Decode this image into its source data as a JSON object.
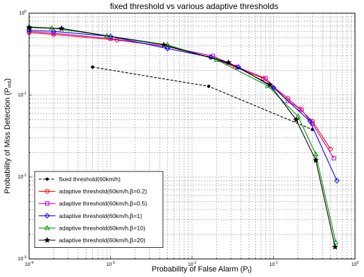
{
  "chart_data": {
    "type": "line",
    "title": "fixed threshold vs various adaptive thresholds",
    "xlabel_main": "Probability of False Alarm (P",
    "xlabel_sub": "f",
    "xlabel_tail": ")",
    "ylabel_main": "Probability of Miss Detection (P",
    "ylabel_sub": "md",
    "ylabel_tail": ")",
    "xscale": "log",
    "yscale": "log",
    "xlim": [
      0.0001,
      1
    ],
    "ylim": [
      0.001,
      1
    ],
    "grid": true,
    "legend_position": "lower-left",
    "x_ticks": [
      {
        "value": 0.0001,
        "base": "10",
        "exp": "-4"
      },
      {
        "value": 0.001,
        "base": "10",
        "exp": "-3"
      },
      {
        "value": 0.01,
        "base": "10",
        "exp": "-2"
      },
      {
        "value": 0.1,
        "base": "10",
        "exp": "-1"
      },
      {
        "value": 1,
        "base": "10",
        "exp": "0"
      }
    ],
    "y_ticks": [
      {
        "value": 0.001,
        "base": "10",
        "exp": "-3"
      },
      {
        "value": 0.01,
        "base": "10",
        "exp": "-2"
      },
      {
        "value": 0.1,
        "base": "10",
        "exp": "-1"
      },
      {
        "value": 1,
        "base": "10",
        "exp": "0"
      }
    ],
    "series": [
      {
        "name": "fixed threshold(60km/h)",
        "color": "#000000",
        "marker": "dot",
        "dash": true,
        "beta": "",
        "x": [
          0.0006,
          0.016,
          0.3
        ],
        "y": [
          0.22,
          0.128,
          0.038
        ]
      },
      {
        "name": "adaptive threshold(60km/h,",
        "beta": "=0.2)",
        "color": "#ff0000",
        "marker": "circle",
        "dash": false,
        "x": [
          0.0001,
          0.0002,
          0.0012,
          0.005,
          0.017,
          0.034,
          0.075,
          0.15,
          0.21,
          0.3,
          0.5
        ],
        "y": [
          0.58,
          0.55,
          0.47,
          0.39,
          0.29,
          0.22,
          0.16,
          0.091,
          0.068,
          0.048,
          0.022
        ]
      },
      {
        "name": "adaptive threshold(60km/h,",
        "beta": "=0.5)",
        "color": "#bf00bf",
        "marker": "square",
        "dash": false,
        "x": [
          0.0001,
          0.0002,
          0.001,
          0.005,
          0.018,
          0.036,
          0.08,
          0.15,
          0.22,
          0.3,
          0.55
        ],
        "y": [
          0.6,
          0.57,
          0.49,
          0.39,
          0.3,
          0.22,
          0.16,
          0.085,
          0.066,
          0.045,
          0.017
        ]
      },
      {
        "name": "adaptive threshold(60km/h,",
        "beta": "=1)",
        "color": "#0000ff",
        "marker": "diamond",
        "dash": false,
        "x": [
          0.0001,
          0.0002,
          0.001,
          0.005,
          0.017,
          0.037,
          0.1,
          0.28,
          0.6
        ],
        "y": [
          0.62,
          0.6,
          0.52,
          0.37,
          0.29,
          0.22,
          0.123,
          0.048,
          0.009
        ]
      },
      {
        "name": "adaptive threshold(60km/h,",
        "beta": "=10)",
        "color": "#009900",
        "marker": "triangle",
        "dash": false,
        "x": [
          0.0001,
          0.00019,
          0.0009,
          0.005,
          0.02,
          0.085,
          0.2,
          0.33,
          0.58
        ],
        "y": [
          0.68,
          0.66,
          0.53,
          0.41,
          0.27,
          0.13,
          0.055,
          0.019,
          0.0016
        ]
      },
      {
        "name": "adaptive threshold(60km/h,",
        "beta": "=20)",
        "color": "#000000",
        "marker": "star",
        "dash": false,
        "x": [
          0.0001,
          0.00025,
          0.0045,
          0.028,
          0.09,
          0.19,
          0.33,
          0.57
        ],
        "y": [
          0.67,
          0.65,
          0.41,
          0.25,
          0.134,
          0.05,
          0.016,
          0.0014
        ]
      }
    ]
  }
}
